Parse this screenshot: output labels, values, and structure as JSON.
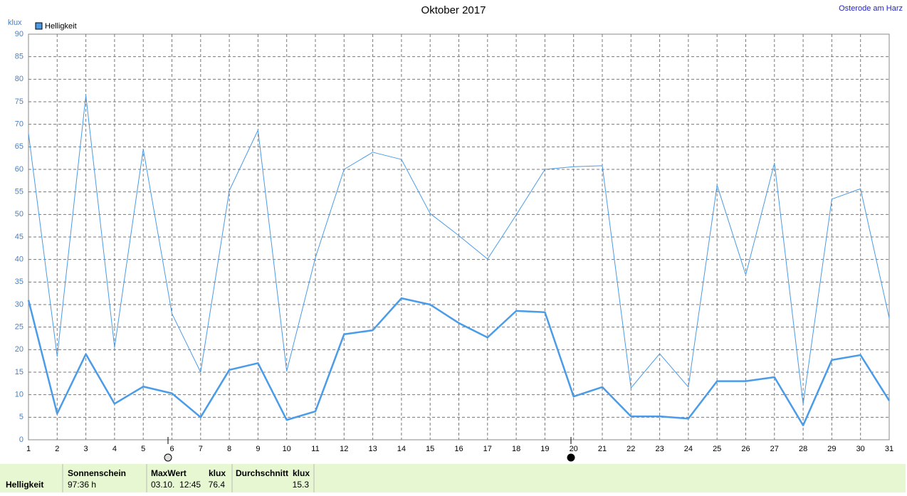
{
  "chart_data": {
    "type": "line",
    "title": "Oktober 2017",
    "location": "Osterode am Harz",
    "y_label": "klux",
    "x": [
      1,
      2,
      3,
      4,
      5,
      6,
      7,
      8,
      9,
      10,
      11,
      12,
      13,
      14,
      15,
      16,
      17,
      18,
      19,
      20,
      21,
      22,
      23,
      24,
      25,
      26,
      27,
      28,
      29,
      30,
      31
    ],
    "series": [
      {
        "name": "Helligkeit",
        "color": "#4a9be8",
        "line_width": 2.5,
        "values": [
          31,
          5.8,
          19,
          8,
          11.8,
          10.3,
          5,
          15.5,
          17,
          4.4,
          6.3,
          23.4,
          24.3,
          31.4,
          30,
          25.9,
          22.7,
          28.6,
          28.3,
          9.6,
          11.7,
          5.2,
          5.2,
          4.7,
          13,
          13,
          13.9,
          3.2,
          17.7,
          18.8,
          8.7
        ]
      },
      {
        "color": "#4a9be8",
        "line_width": 1,
        "values": [
          68,
          18.5,
          76.4,
          20.5,
          64.5,
          28,
          15,
          55.3,
          68.7,
          15.2,
          40.4,
          60,
          63.8,
          62.2,
          50.2,
          45.3,
          40.1,
          49.9,
          60,
          60.6,
          60.8,
          11.5,
          19.1,
          11.7,
          56.5,
          36.6,
          61.4,
          7.9,
          53.4,
          55.7,
          27
        ]
      }
    ],
    "xlim": [
      1,
      31
    ],
    "xticks": [
      1,
      2,
      3,
      4,
      5,
      6,
      7,
      8,
      9,
      10,
      11,
      12,
      13,
      14,
      15,
      16,
      17,
      18,
      19,
      20,
      21,
      22,
      23,
      24,
      25,
      26,
      27,
      28,
      29,
      30,
      31
    ],
    "ylim": [
      0,
      90
    ],
    "yticks": [
      0,
      5,
      10,
      15,
      20,
      25,
      30,
      35,
      40,
      45,
      50,
      55,
      60,
      65,
      70,
      75,
      80,
      85,
      90
    ],
    "grid": true,
    "legend": "top-left"
  },
  "summary": {
    "row_label": "Helligkeit",
    "sunshine_label": "Sonnenschein",
    "sunshine": "97:36 h",
    "max_label": "MaxWert",
    "max_unit": "klux",
    "max_time": "03.10.  12:45",
    "max_value": "76.4",
    "avg_label": "Durchschnitt",
    "avg_unit": "klux",
    "avg_value": "15.3"
  }
}
